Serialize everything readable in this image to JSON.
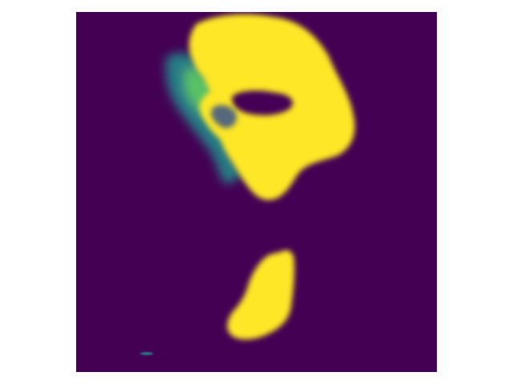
{
  "figure": {
    "kind": "segmentation-mask-heatmap",
    "colormap": "viridis",
    "colors": {
      "background": "#440154",
      "foreground": "#fde725",
      "edge_teal": "#21908d",
      "edge_green": "#5ec962",
      "edge_blue": "#3b528b",
      "page": "#ffffff"
    },
    "axes_visible": false,
    "blobs": [
      "upper-large-region",
      "lower-region",
      "speck"
    ]
  }
}
